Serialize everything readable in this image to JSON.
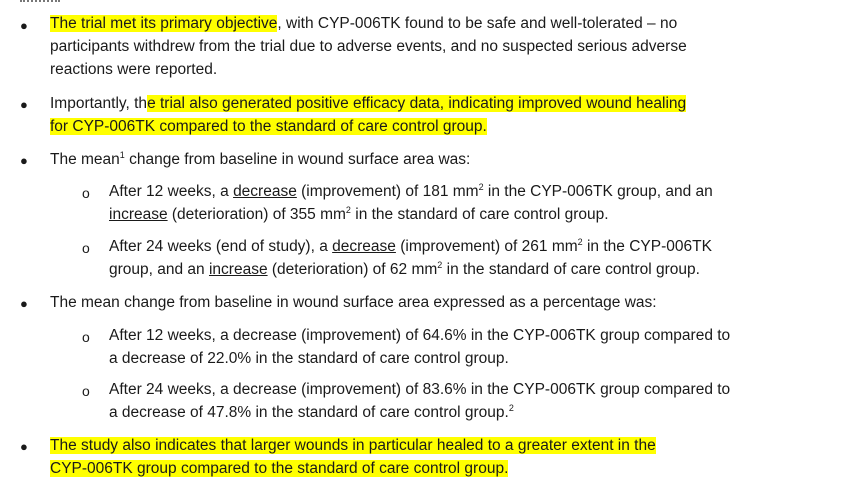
{
  "bullets": {
    "b1": {
      "hl": "The trial met its primary objective",
      "rest1": ", with CYP-006TK found to be safe and well-tolerated – no",
      "line2": "participants withdrew from the trial due to adverse events, and no suspected serious adverse",
      "line3": "reactions were reported."
    },
    "b2": {
      "pre": "Importantly, th",
      "hl1": "e trial also generated positive efficacy data, indicating improved wound healing",
      "hl2": "for CYP-006TK compared to the standard of care control group."
    },
    "b3": {
      "a": "The mean",
      "sup": "1",
      "b": " change from baseline in wound surface area was:",
      "s1": {
        "a": "After 12 weeks, a ",
        "u1": "decrease",
        "b": " (improvement) of 181 mm",
        "sup1": "2",
        "c": " in the CYP-006TK group, and an",
        "u2": "increase",
        "d": " (deterioration) of 355 mm",
        "sup2": "2",
        "e": " in the standard of care control group."
      },
      "s2": {
        "a": "After 24 weeks (end of study), a ",
        "u1": "decrease",
        "b": " (improvement) of 261 mm",
        "sup1": "2",
        "c": " in the CYP-006TK",
        "d": "group, and an ",
        "u2": "increase",
        "e": " (deterioration) of 62 mm",
        "sup2": "2",
        "f": " in the standard of care control group."
      }
    },
    "b4": {
      "text": "The mean change from baseline in wound surface area expressed as a percentage was:",
      "s1": {
        "l1": "After 12 weeks, a decrease (improvement) of 64.6% in the CYP-006TK group compared to",
        "l2": "a decrease of 22.0% in the standard of care control group."
      },
      "s2": {
        "l1": "After 24 weeks, a decrease (improvement) of 83.6% in the CYP-006TK group compared to",
        "l2": "a decrease of 47.8% in the standard of care control group.",
        "sup": "2"
      }
    },
    "b5": {
      "l1": "The study also indicates that larger wounds in particular healed to a greater extent in the",
      "l2": "CYP-006TK group compared to the standard of care control group."
    }
  },
  "symbols": {
    "bullet": "●",
    "sub_bullet": "o"
  },
  "colors": {
    "highlight": "#ffff00",
    "text": "#1a1a1a"
  }
}
